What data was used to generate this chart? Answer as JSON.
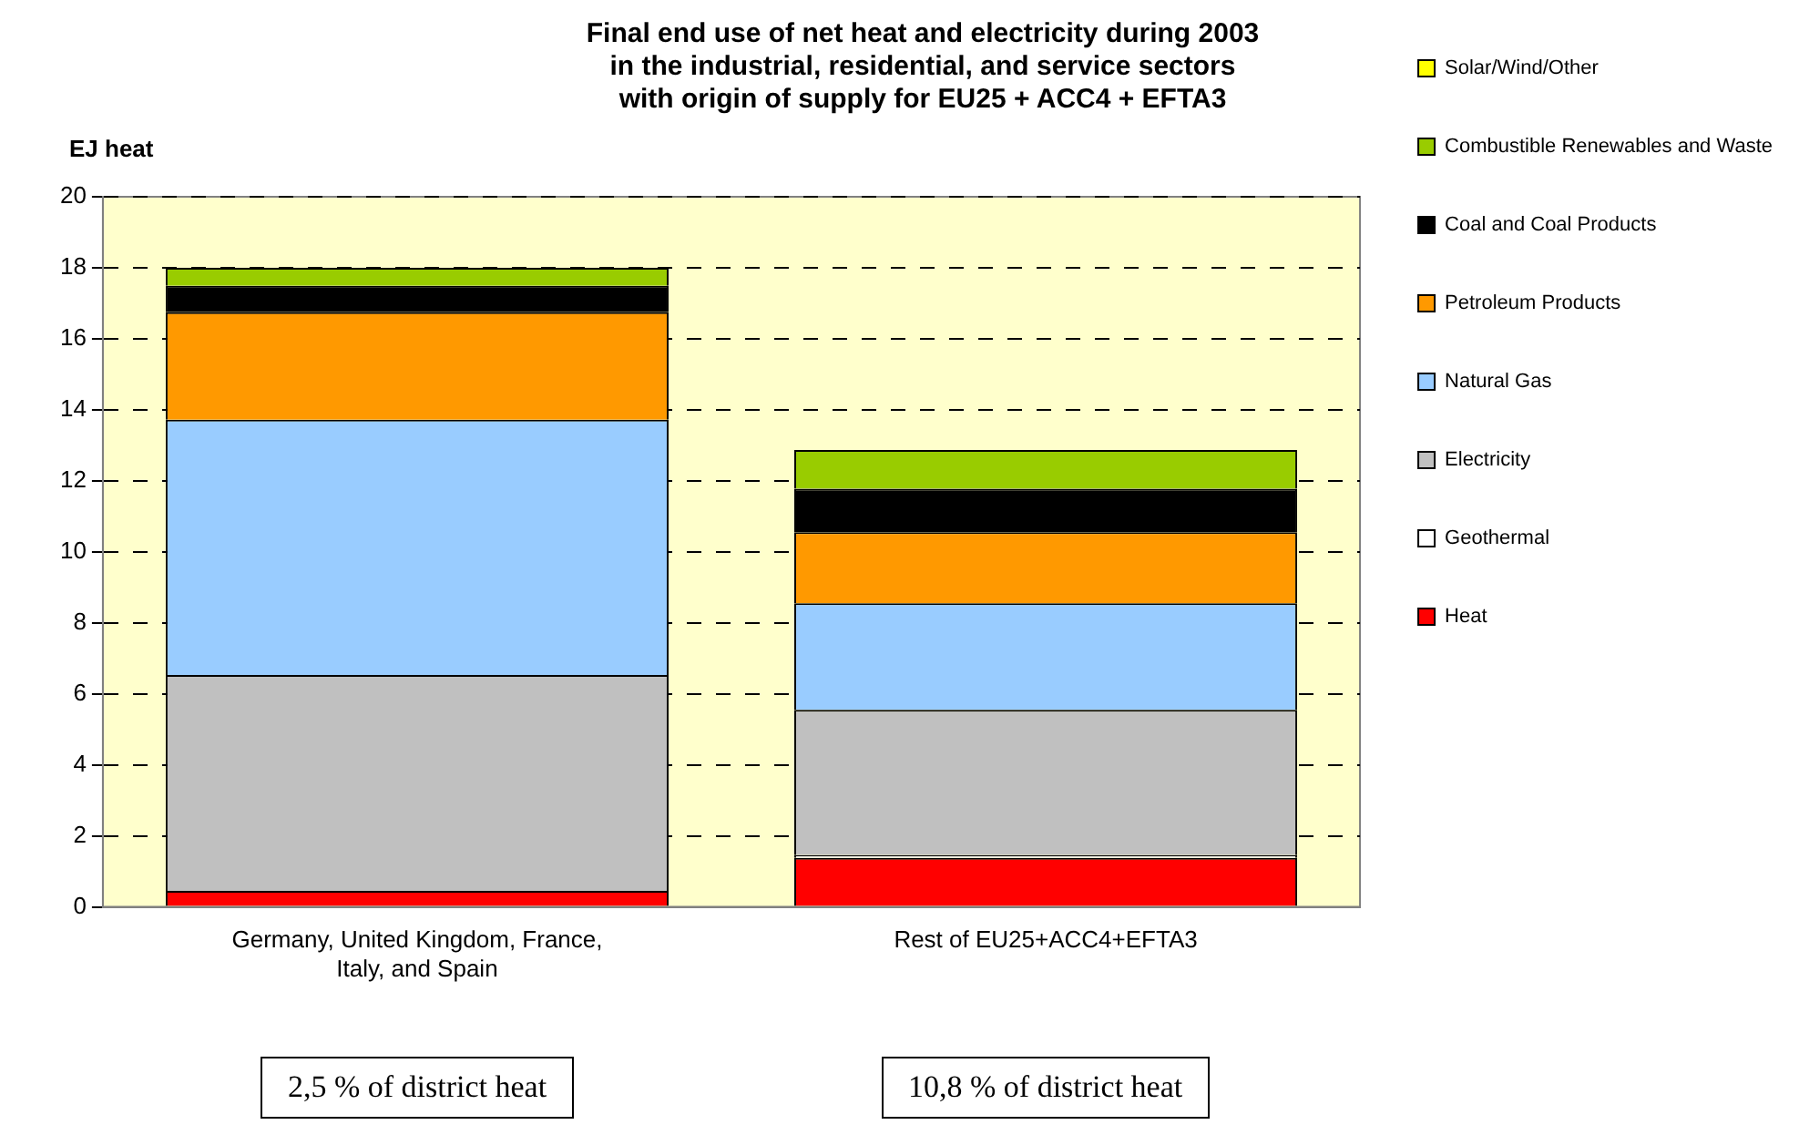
{
  "chart_data": {
    "type": "bar",
    "title": "Final end use of net heat and electricity during 2003\nin the industrial, residential, and service sectors\nwith origin of supply for EU25 + ACC4 + EFTA3",
    "ylabel": "EJ heat",
    "categories": [
      "Germany, United Kingdom, France, Italy, and Spain",
      "Rest of EU25+ACC4+EFTA3"
    ],
    "stacked": true,
    "series": [
      {
        "name": "Heat",
        "color": "#ff0000",
        "values": [
          0.45,
          1.38
        ]
      },
      {
        "name": "Geothermal",
        "color": "#ffffff",
        "values": [
          0,
          0.08
        ]
      },
      {
        "name": "Electricity",
        "color": "#c0c0c0",
        "values": [
          6.08,
          4.09
        ]
      },
      {
        "name": "Natural Gas",
        "color": "#99ccff",
        "values": [
          7.19,
          3.0
        ]
      },
      {
        "name": "Petroleum Products",
        "color": "#ff9900",
        "values": [
          3.03,
          2.0
        ]
      },
      {
        "name": "Coal and Coal Products",
        "color": "#000000",
        "values": [
          0.74,
          1.23
        ]
      },
      {
        "name": "Combustible Renewables and Waste",
        "color": "#99cc00",
        "values": [
          0.51,
          1.09
        ]
      },
      {
        "name": "Solar/Wind/Other",
        "color": "#ffff00",
        "values": [
          0,
          0
        ]
      }
    ],
    "ylim": [
      0,
      20
    ],
    "yticks": [
      0,
      2,
      4,
      6,
      8,
      10,
      12,
      14,
      16,
      18,
      20
    ],
    "grid": "y",
    "legend": "right",
    "annotations": [
      "2,5 % of district heat",
      "10,8 % of district heat"
    ]
  }
}
